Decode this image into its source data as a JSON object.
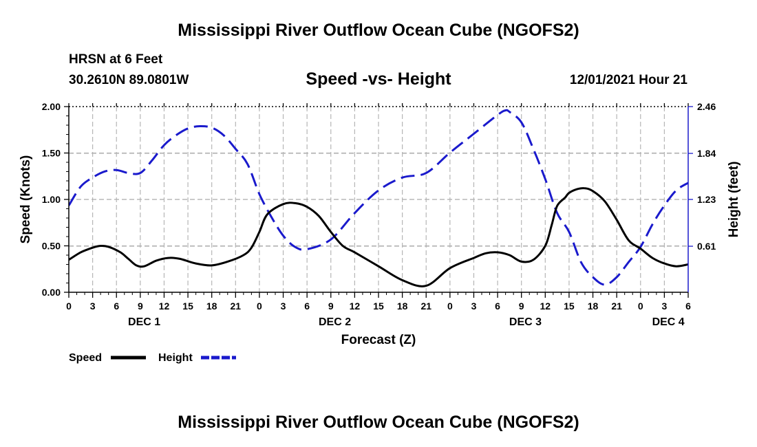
{
  "header": {
    "title": "Mississippi River Outflow Ocean Cube (NGOFS2)",
    "station": "HRSN at 6 Feet",
    "coords": "30.2610N  89.0801W",
    "subtitle": "Speed -vs- Height",
    "datetime": "12/01/2021 Hour 21"
  },
  "footer": {
    "title": "Mississippi River Outflow Ocean Cube (NGOFS2)"
  },
  "chart_data": {
    "type": "line",
    "title": "Speed -vs- Height",
    "xlabel": "Forecast (Z)",
    "ylabel": "Speed (Knots)",
    "y2label": "Height (feet)",
    "x_unit": "hours since DEC 1 00Z",
    "xlim": [
      0,
      78
    ],
    "ylim": [
      0,
      2
    ],
    "y2lim": [
      0,
      2.46
    ],
    "x_ticks": [
      0,
      3,
      6,
      9,
      12,
      15,
      18,
      21,
      24,
      27,
      30,
      33,
      36,
      39,
      42,
      45,
      48,
      51,
      54,
      57,
      60,
      63,
      66,
      69,
      72,
      75,
      78
    ],
    "x_tick_labels": [
      "0",
      "3",
      "6",
      "9",
      "12",
      "15",
      "18",
      "21",
      "0",
      "3",
      "6",
      "9",
      "12",
      "15",
      "18",
      "21",
      "0",
      "3",
      "6",
      "9",
      "12",
      "15",
      "18",
      "21",
      "0",
      "3",
      "6"
    ],
    "y_ticks": [
      0,
      0.5,
      1.0,
      1.5,
      2.0
    ],
    "y_tick_labels": [
      "0.00",
      "0.50",
      "1.00",
      "1.50",
      "2.00"
    ],
    "y2_ticks": [
      0.61,
      1.23,
      1.84,
      2.46
    ],
    "y2_tick_labels": [
      "0.61",
      "1.23",
      "1.84",
      "2.46"
    ],
    "day_labels": [
      {
        "text": "DEC 1",
        "x": 9.5
      },
      {
        "text": "DEC 2",
        "x": 33.5
      },
      {
        "text": "DEC 3",
        "x": 57.5
      },
      {
        "text": "DEC 4",
        "x": 75.5
      }
    ],
    "grid": true,
    "series": [
      {
        "name": "Speed",
        "axis": "left",
        "color": "#000000",
        "dash": "solid",
        "x": [
          0,
          1.5,
          3,
          4,
          5,
          6.5,
          7.5,
          8.5,
          9.5,
          11,
          12.5,
          14,
          16,
          18,
          20,
          22,
          23,
          24,
          25,
          27,
          28.5,
          30,
          31.5,
          33,
          34.5,
          36,
          39,
          42,
          45,
          48,
          51,
          52.5,
          54,
          55.5,
          57,
          58.5,
          60,
          60.8,
          61.5,
          62.5,
          63,
          64,
          65,
          66,
          67.5,
          69,
          70.5,
          72,
          73.5,
          75,
          76.5,
          78
        ],
        "values": [
          0.35,
          0.43,
          0.48,
          0.5,
          0.49,
          0.43,
          0.36,
          0.29,
          0.28,
          0.34,
          0.37,
          0.36,
          0.31,
          0.29,
          0.33,
          0.4,
          0.48,
          0.65,
          0.84,
          0.95,
          0.96,
          0.92,
          0.82,
          0.65,
          0.5,
          0.43,
          0.28,
          0.13,
          0.07,
          0.26,
          0.37,
          0.42,
          0.43,
          0.4,
          0.33,
          0.35,
          0.5,
          0.72,
          0.93,
          1.02,
          1.07,
          1.11,
          1.12,
          1.09,
          0.98,
          0.78,
          0.56,
          0.47,
          0.37,
          0.31,
          0.28,
          0.3
        ]
      },
      {
        "name": "Height",
        "axis": "right",
        "color": "#1a1acc",
        "dash": "dashed",
        "x": [
          0,
          1.5,
          3,
          4.5,
          6,
          7.5,
          9,
          10.5,
          12,
          13.5,
          15,
          16.5,
          18,
          19.5,
          21,
          22.5,
          24,
          25.5,
          27,
          28.5,
          30,
          33,
          36,
          39,
          42,
          45,
          48,
          51,
          54,
          55,
          55.5,
          57,
          58.5,
          60,
          61.5,
          63,
          64.5,
          66,
          67.5,
          69,
          70.5,
          72,
          73.5,
          75,
          76.5,
          78
        ],
        "values": [
          1.15,
          1.4,
          1.52,
          1.6,
          1.62,
          1.58,
          1.58,
          1.75,
          1.95,
          2.08,
          2.17,
          2.2,
          2.18,
          2.08,
          1.9,
          1.7,
          1.3,
          1.0,
          0.75,
          0.6,
          0.57,
          0.7,
          1.05,
          1.35,
          1.52,
          1.58,
          1.85,
          2.1,
          2.35,
          2.41,
          2.39,
          2.25,
          1.9,
          1.5,
          1.05,
          0.8,
          0.4,
          0.2,
          0.1,
          0.2,
          0.4,
          0.6,
          0.9,
          1.15,
          1.35,
          1.45
        ]
      }
    ],
    "legend": {
      "placement": "bottom-left",
      "entries": [
        {
          "label": "Speed",
          "color": "#000000",
          "dash": "solid"
        },
        {
          "label": "Height",
          "color": "#1a1acc",
          "dash": "dashed"
        }
      ]
    }
  }
}
